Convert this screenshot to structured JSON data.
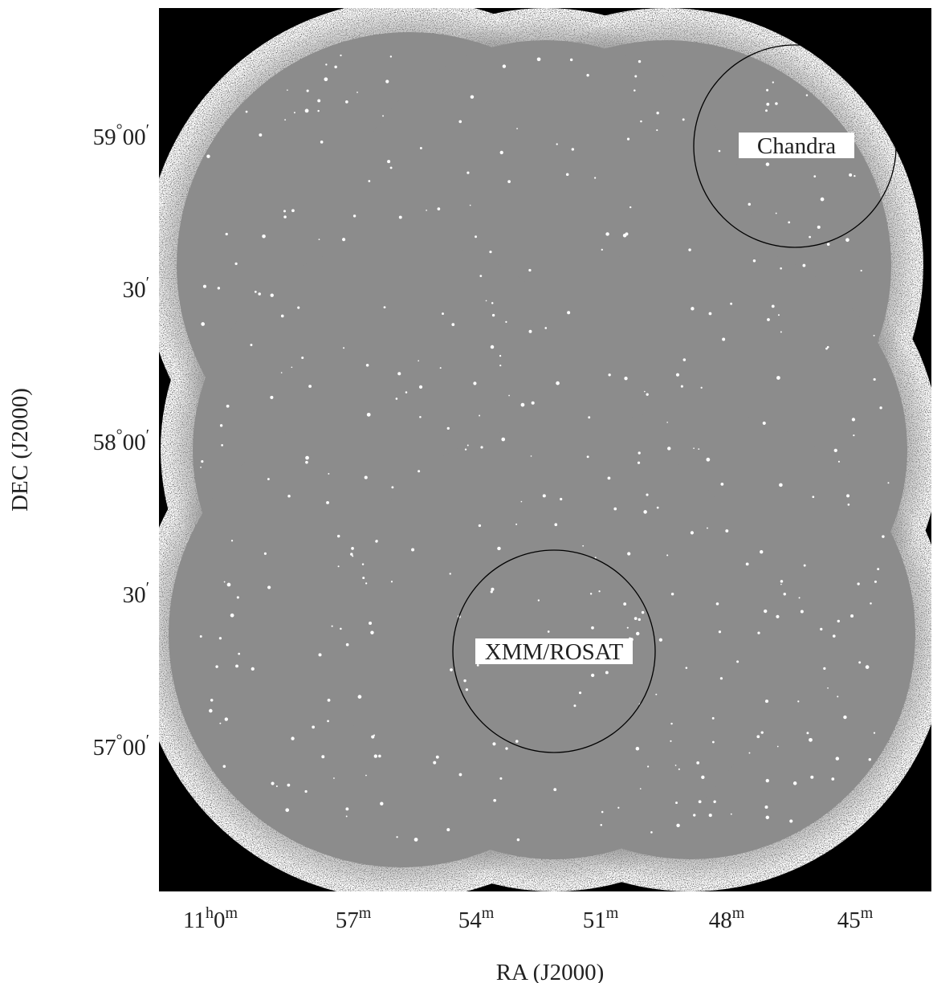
{
  "axes": {
    "x_label": "RA (J2000)",
    "y_label": "DEC (J2000)",
    "x_ticks": [
      [
        "11",
        "h",
        "0",
        "m"
      ],
      [
        "57",
        "m"
      ],
      [
        "54",
        "m"
      ],
      [
        "51",
        "m"
      ],
      [
        "48",
        "m"
      ],
      [
        "45",
        "m"
      ]
    ],
    "y_ticks": [
      [
        "59",
        "°",
        "00",
        "′"
      ],
      [
        "30",
        "′"
      ],
      [
        "58",
        "°",
        "00",
        "′"
      ],
      [
        "30",
        "′"
      ],
      [
        "57",
        "°",
        "00",
        "′"
      ]
    ]
  },
  "regions": [
    {
      "label": "Chandra"
    },
    {
      "label": "XMM/ROSAT"
    }
  ]
}
